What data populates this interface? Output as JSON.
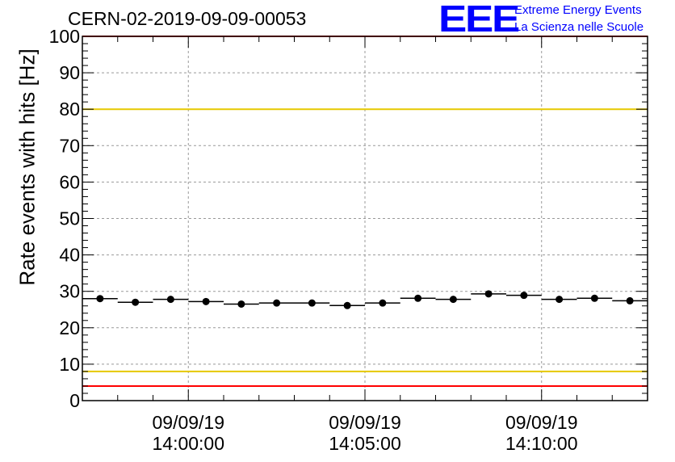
{
  "header": {
    "run_title": "CERN-02-2019-09-09-00053",
    "logo_mark": "EEE",
    "logo_line1": "Extreme Energy Events",
    "logo_line2": "La Scienza nelle Scuole",
    "logo_color": "#0000ff"
  },
  "chart_data": {
    "type": "scatter",
    "title": "CERN-02-2019-09-09-00053",
    "ylabel": "Rate events with hits [Hz]",
    "xlabel": "",
    "ylim": [
      0,
      100
    ],
    "xlim": [
      "2019-09-09 13:57:00",
      "2019-09-09 14:13:00"
    ],
    "yticks": [
      0,
      10,
      20,
      30,
      40,
      50,
      60,
      70,
      80,
      90,
      100
    ],
    "xticks": [
      {
        "date": "09/09/19",
        "time": "14:00:00"
      },
      {
        "date": "09/09/19",
        "time": "14:05:00"
      },
      {
        "date": "09/09/19",
        "time": "14:10:00"
      }
    ],
    "grid": true,
    "series": [
      {
        "x": [
          "13:57:30",
          "13:58:30",
          "13:59:30",
          "14:00:30",
          "14:01:30",
          "14:02:30",
          "14:03:30",
          "14:04:30",
          "14:05:30",
          "14:06:30",
          "14:07:30",
          "14:08:30",
          "14:09:30",
          "14:10:30",
          "14:11:30",
          "14:12:30"
        ],
        "values": [
          28.0,
          27.0,
          27.8,
          27.2,
          26.5,
          26.8,
          26.8,
          26.1,
          26.8,
          28.1,
          27.8,
          29.3,
          28.9,
          27.8,
          28.1,
          27.4
        ],
        "x_halfwidth_seconds": 30
      }
    ],
    "reference_lines": [
      {
        "y": 100,
        "color": "#ff0000"
      },
      {
        "y": 80,
        "color": "#e6c800"
      },
      {
        "y": 8,
        "color": "#e6c800"
      },
      {
        "y": 4,
        "color": "#ff0000"
      }
    ]
  }
}
